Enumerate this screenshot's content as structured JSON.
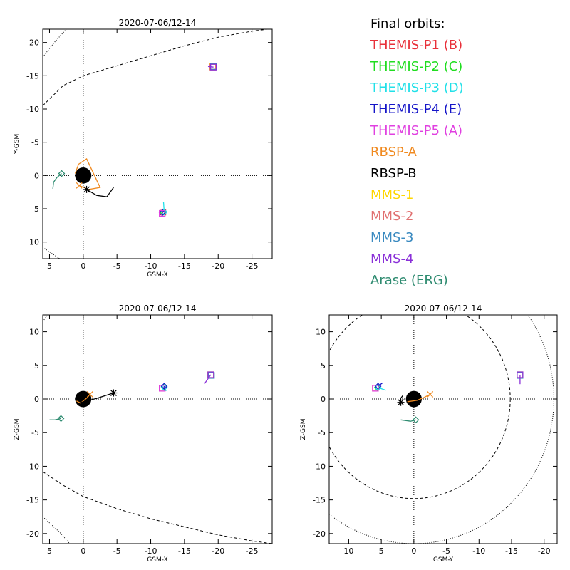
{
  "chart_data": [
    {
      "type": "scatter",
      "id": "xy",
      "title": "2020-07-06/12-14",
      "xlabel": "GSM-X",
      "ylabel": "Y-GSM",
      "xlim": [
        6,
        -28
      ],
      "ylim": [
        12.5,
        -22
      ],
      "xticks": [
        5,
        0,
        -5,
        -10,
        -15,
        -20,
        -25
      ],
      "yticks": [
        -20,
        -15,
        -10,
        -5,
        0,
        5,
        10
      ],
      "grid": false,
      "earth": [
        0,
        0,
        1
      ],
      "boundaries": [
        {
          "style": "dashed",
          "points": [
            [
              6,
              -10.5
            ],
            [
              3,
              -13.5
            ],
            [
              0,
              -15
            ],
            [
              -5,
              -16.5
            ],
            [
              -10,
              -18
            ],
            [
              -15,
              -19.5
            ],
            [
              -20,
              -20.8
            ],
            [
              -25,
              -21.7
            ],
            [
              -28,
              -22.1
            ]
          ]
        },
        {
          "style": "dotted",
          "points": [
            [
              6,
              -17.8
            ],
            [
              4.3,
              -20
            ],
            [
              2.5,
              -22
            ]
          ]
        },
        {
          "style": "dotted",
          "points": [
            [
              6,
              10.8
            ],
            [
              3.5,
              12.5
            ]
          ]
        }
      ],
      "series": [
        {
          "name": "THEMIS-P1 (B)",
          "color": "#e8303a",
          "marker": "square",
          "points": [
            [
              -11.7,
              6
            ],
            [
              -11.8,
              5.5
            ]
          ]
        },
        {
          "name": "THEMIS-P2 (C)",
          "color": "#20dd20",
          "marker": "diamond",
          "points": [
            [
              -11.8,
              5.5
            ]
          ]
        },
        {
          "name": "THEMIS-P3 (D)",
          "color": "#20e0e8",
          "marker": "diamond",
          "points": [
            [
              -11.9,
              4
            ],
            [
              -12.0,
              5.5
            ]
          ]
        },
        {
          "name": "THEMIS-P4 (E)",
          "color": "#1515c8",
          "marker": "diamond",
          "points": [
            [
              -11.8,
              5
            ],
            [
              -11.7,
              5.6
            ]
          ]
        },
        {
          "name": "THEMIS-P5 (A)",
          "color": "#e040e0",
          "marker": "square",
          "points": [
            [
              -11.6,
              6
            ],
            [
              -11.7,
              5.7
            ]
          ]
        },
        {
          "name": "RBSP-A",
          "color": "#f08a20",
          "marker": "x",
          "points": [
            [
              1.2,
              -0.3
            ],
            [
              0.7,
              -1.7
            ],
            [
              -0.5,
              -2.5
            ],
            [
              -2.5,
              1.8
            ],
            [
              -0.8,
              2.1
            ],
            [
              0.6,
              1.5
            ]
          ]
        },
        {
          "name": "RBSP-B",
          "color": "#000000",
          "marker": "asterisk",
          "points": [
            [
              -4.5,
              1.8
            ],
            [
              -3.5,
              3.2
            ],
            [
              -2.0,
              3.0
            ],
            [
              -0.5,
              2.1
            ]
          ]
        },
        {
          "name": "MMS-1",
          "color": "#ffd700",
          "marker": "square",
          "points": [
            [
              -19.2,
              -16.4
            ]
          ]
        },
        {
          "name": "MMS-2",
          "color": "#e07070",
          "marker": "square",
          "points": [
            [
              -19.2,
              -16.3
            ]
          ]
        },
        {
          "name": "MMS-3",
          "color": "#3a8ac0",
          "marker": "square",
          "points": [
            [
              -19.3,
              -16.4
            ]
          ]
        },
        {
          "name": "MMS-4",
          "color": "#8a30d8",
          "marker": "square",
          "points": [
            [
              -18.5,
              -16.4
            ],
            [
              -19.3,
              -16.3
            ]
          ]
        },
        {
          "name": "Arase (ERG)",
          "color": "#2e8b70",
          "marker": "diamond",
          "points": [
            [
              4.5,
              2.0
            ],
            [
              4.4,
              1.0
            ],
            [
              3.9,
              0.3
            ],
            [
              3.2,
              -0.3
            ]
          ]
        }
      ]
    },
    {
      "type": "scatter",
      "id": "xz",
      "title": "2020-07-06/12-14",
      "xlabel": "GSM-X",
      "ylabel": "Z-GSM",
      "xlim": [
        6,
        -28
      ],
      "ylim": [
        -21.5,
        12.5
      ],
      "xticks": [
        5,
        0,
        -5,
        -10,
        -15,
        -20,
        -25
      ],
      "yticks": [
        10,
        5,
        0,
        -5,
        -10,
        -15,
        -20
      ],
      "grid": false,
      "earth": [
        0,
        0,
        1
      ],
      "boundaries": [
        {
          "style": "dashed",
          "points": [
            [
              6,
              -10.8
            ],
            [
              3,
              -12.8
            ],
            [
              0,
              -14.5
            ],
            [
              -5,
              -16.3
            ],
            [
              -10,
              -17.8
            ],
            [
              -15,
              -19.0
            ],
            [
              -20,
              -20.2
            ],
            [
              -25,
              -21.1
            ],
            [
              -28,
              -21.5
            ]
          ]
        },
        {
          "style": "dotted",
          "points": [
            [
              6,
              -17.5
            ],
            [
              3.5,
              -19.8
            ],
            [
              2,
              -21.5
            ]
          ]
        },
        {
          "style": "dotted",
          "points": [
            [
              6,
              11.5
            ],
            [
              5.3,
              12.5
            ]
          ]
        }
      ],
      "series": [
        {
          "name": "THEMIS-P1 (B)",
          "color": "#e8303a",
          "marker": "square",
          "points": [
            [
              -11.7,
              1.6
            ]
          ]
        },
        {
          "name": "THEMIS-P2 (C)",
          "color": "#20dd20",
          "marker": "diamond",
          "points": [
            [
              -12.0,
              1.8
            ]
          ]
        },
        {
          "name": "THEMIS-P3 (D)",
          "color": "#20e0e8",
          "marker": "diamond",
          "points": [
            [
              -12.3,
              1.2
            ],
            [
              -12.0,
              1.7
            ]
          ]
        },
        {
          "name": "THEMIS-P4 (E)",
          "color": "#1515c8",
          "marker": "diamond",
          "points": [
            [
              -11.9,
              1.5
            ],
            [
              -12.0,
              1.9
            ]
          ]
        },
        {
          "name": "THEMIS-P5 (A)",
          "color": "#e040e0",
          "marker": "square",
          "points": [
            [
              -11.7,
              1.6
            ]
          ]
        },
        {
          "name": "RBSP-A",
          "color": "#f08a20",
          "marker": "x",
          "points": [
            [
              1.0,
              -0.3
            ],
            [
              0.4,
              -0.6
            ],
            [
              -0.6,
              0.2
            ],
            [
              -1.0,
              0.7
            ]
          ]
        },
        {
          "name": "RBSP-B",
          "color": "#000000",
          "marker": "asterisk",
          "points": [
            [
              0.3,
              -0.5
            ],
            [
              -2.0,
              0.1
            ],
            [
              -4.5,
              0.9
            ]
          ]
        },
        {
          "name": "MMS-1",
          "color": "#ffd700",
          "marker": "square",
          "points": [
            [
              -18.9,
              3.6
            ]
          ]
        },
        {
          "name": "MMS-2",
          "color": "#e07070",
          "marker": "square",
          "points": [
            [
              -18.9,
              3.6
            ]
          ]
        },
        {
          "name": "MMS-3",
          "color": "#3a8ac0",
          "marker": "square",
          "points": [
            [
              -19.0,
              3.5
            ]
          ]
        },
        {
          "name": "MMS-4",
          "color": "#8a30d8",
          "marker": "square",
          "points": [
            [
              -18.0,
              2.3
            ],
            [
              -18.9,
              3.6
            ]
          ]
        },
        {
          "name": "Arase (ERG)",
          "color": "#2e8b70",
          "marker": "diamond",
          "points": [
            [
              5.0,
              -3.1
            ],
            [
              4.2,
              -3.1
            ],
            [
              3.3,
              -2.9
            ]
          ]
        }
      ]
    },
    {
      "type": "scatter",
      "id": "yz",
      "title": "2020-07-06/12-14",
      "xlabel": "GSM-Y",
      "ylabel": "Z-GSM",
      "xlim": [
        13,
        -22
      ],
      "ylim": [
        -21.5,
        12.5
      ],
      "xticks": [
        10,
        5,
        0,
        -5,
        -10,
        -15,
        -20
      ],
      "yticks": [
        10,
        5,
        0,
        -5,
        -10,
        -15,
        -20
      ],
      "grid": false,
      "earth": [
        0,
        0,
        1
      ],
      "boundaries": [
        {
          "style": "dashed-circle",
          "center": [
            0,
            0
          ],
          "radius": 14.8
        },
        {
          "style": "dotted-circle",
          "center": [
            0,
            0
          ],
          "radius": 21.5
        }
      ],
      "series": [
        {
          "name": "THEMIS-P1 (B)",
          "color": "#e8303a",
          "marker": "square",
          "points": [
            [
              5.9,
              1.6
            ]
          ]
        },
        {
          "name": "THEMIS-P2 (C)",
          "color": "#20dd20",
          "marker": "diamond",
          "points": [
            [
              5.6,
              1.7
            ]
          ]
        },
        {
          "name": "THEMIS-P3 (D)",
          "color": "#20e0e8",
          "marker": "diamond",
          "points": [
            [
              4.3,
              1.3
            ],
            [
              5.5,
              1.7
            ]
          ]
        },
        {
          "name": "THEMIS-P4 (E)",
          "color": "#1515c8",
          "marker": "diamond",
          "points": [
            [
              4.8,
              2.4
            ],
            [
              5.5,
              1.9
            ]
          ]
        },
        {
          "name": "THEMIS-P5 (A)",
          "color": "#e040e0",
          "marker": "square",
          "points": [
            [
              5.9,
              1.6
            ]
          ]
        },
        {
          "name": "RBSP-A",
          "color": "#f08a20",
          "marker": "x",
          "points": [
            [
              1.0,
              -0.4
            ],
            [
              -0.5,
              -0.2
            ],
            [
              -1.5,
              0.2
            ],
            [
              -2.5,
              0.7
            ]
          ]
        },
        {
          "name": "RBSP-B",
          "color": "#000000",
          "marker": "asterisk",
          "points": [
            [
              1.7,
              0.5
            ],
            [
              2.1,
              0.0
            ],
            [
              2.0,
              -0.5
            ]
          ]
        },
        {
          "name": "MMS-1",
          "color": "#ffd700",
          "marker": "square",
          "points": [
            [
              -16.3,
              3.6
            ]
          ]
        },
        {
          "name": "MMS-2",
          "color": "#e07070",
          "marker": "square",
          "points": [
            [
              -16.3,
              3.6
            ]
          ]
        },
        {
          "name": "MMS-3",
          "color": "#3a8ac0",
          "marker": "square",
          "points": [
            [
              -16.3,
              3.5
            ]
          ]
        },
        {
          "name": "MMS-4",
          "color": "#8a30d8",
          "marker": "square",
          "points": [
            [
              -16.3,
              2.2
            ],
            [
              -16.3,
              3.6
            ]
          ]
        },
        {
          "name": "Arase (ERG)",
          "color": "#2e8b70",
          "marker": "diamond",
          "points": [
            [
              2.0,
              -3.1
            ],
            [
              0.5,
              -3.3
            ],
            [
              -0.3,
              -3.1
            ]
          ]
        }
      ]
    }
  ],
  "legend": {
    "title": "Final orbits:",
    "items": [
      {
        "label": "THEMIS-P1 (B)",
        "color": "#e8303a"
      },
      {
        "label": "THEMIS-P2 (C)",
        "color": "#20dd20"
      },
      {
        "label": "THEMIS-P3 (D)",
        "color": "#20e0e8"
      },
      {
        "label": "THEMIS-P4 (E)",
        "color": "#1515c8"
      },
      {
        "label": "THEMIS-P5 (A)",
        "color": "#e040e0"
      },
      {
        "label": "RBSP-A",
        "color": "#f08a20"
      },
      {
        "label": "RBSP-B",
        "color": "#000000"
      },
      {
        "label": "MMS-1",
        "color": "#ffd700"
      },
      {
        "label": "MMS-2",
        "color": "#e07070"
      },
      {
        "label": "MMS-3",
        "color": "#3a8ac0"
      },
      {
        "label": "MMS-4",
        "color": "#8a30d8"
      },
      {
        "label": "Arase (ERG)",
        "color": "#2e8b70"
      }
    ]
  }
}
